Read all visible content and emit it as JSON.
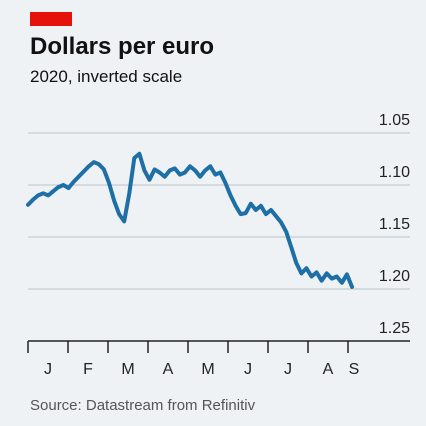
{
  "chart_data": {
    "type": "line",
    "title": "Dollars per euro",
    "subtitle": "2020, inverted scale",
    "source": "Source: Datastream from Refinitiv",
    "month_labels": [
      "J",
      "F",
      "M",
      "A",
      "M",
      "J",
      "J",
      "A",
      "S"
    ],
    "y_inverted": true,
    "ylim": [
      1.05,
      1.25
    ],
    "yticks": [
      1.05,
      {
        "value": 1.1,
        "label": "1.10"
      },
      1.15,
      {
        "value": 1.2,
        "label": "1.20"
      },
      1.25
    ],
    "grid": true,
    "series": [
      {
        "name": "Dollars per euro",
        "color": "#1d6fa5",
        "values": [
          1.119,
          1.114,
          1.11,
          1.108,
          1.11,
          1.106,
          1.102,
          1.1,
          1.103,
          1.097,
          1.092,
          1.087,
          1.082,
          1.078,
          1.08,
          1.085,
          1.098,
          1.115,
          1.128,
          1.135,
          1.108,
          1.074,
          1.07,
          1.086,
          1.095,
          1.085,
          1.088,
          1.092,
          1.086,
          1.084,
          1.09,
          1.088,
          1.082,
          1.086,
          1.092,
          1.086,
          1.082,
          1.09,
          1.088,
          1.098,
          1.11,
          1.12,
          1.128,
          1.127,
          1.118,
          1.124,
          1.12,
          1.128,
          1.124,
          1.13,
          1.136,
          1.145,
          1.16,
          1.175,
          1.185,
          1.18,
          1.188,
          1.184,
          1.192,
          1.185,
          1.19,
          1.188,
          1.194,
          1.186,
          1.198
        ]
      }
    ]
  }
}
